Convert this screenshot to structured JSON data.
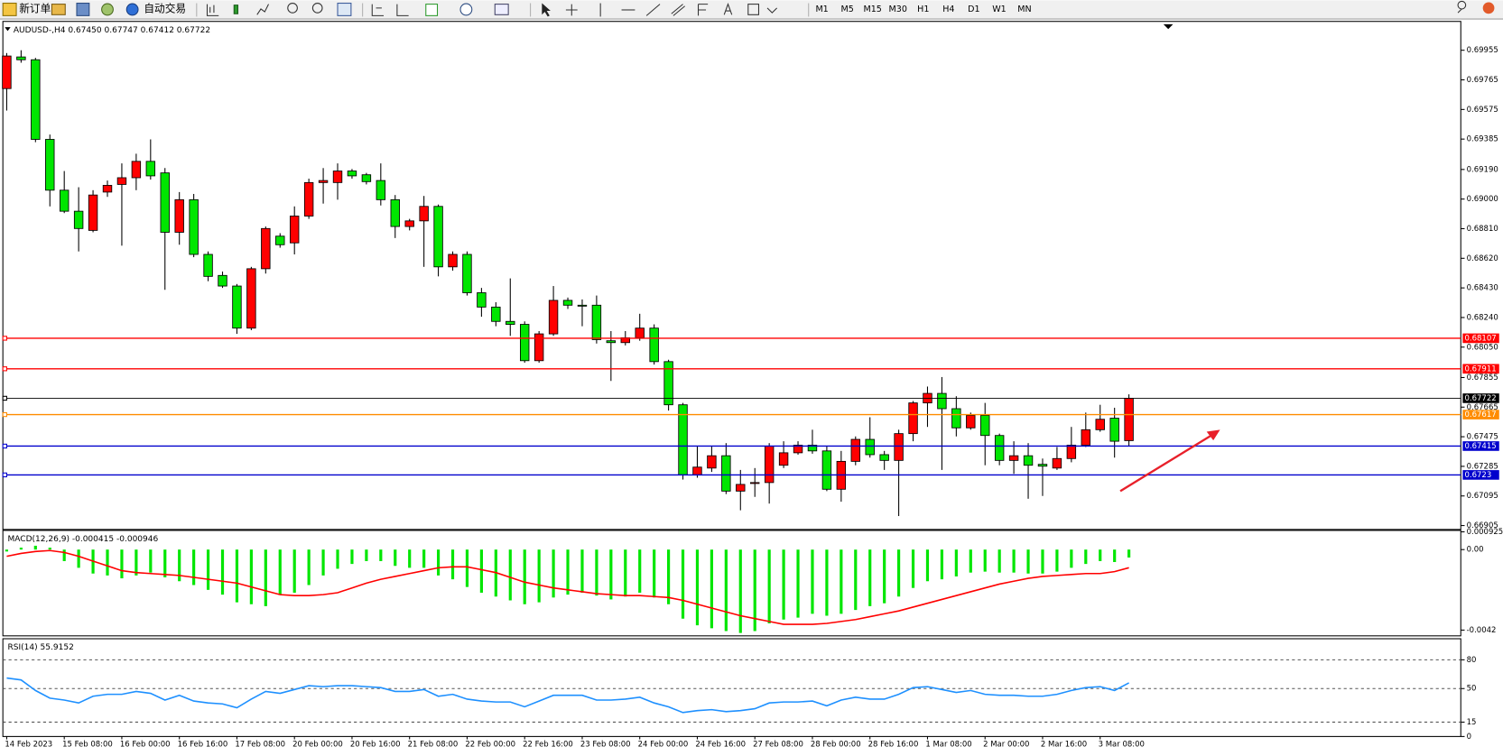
{
  "toolbar": {
    "new_order": "新订单",
    "auto_trading": "自动交易",
    "timeframes": [
      "M1",
      "M5",
      "M15",
      "M30",
      "H1",
      "H4",
      "D1",
      "W1",
      "MN"
    ]
  },
  "chart_data": [
    {
      "type": "candlestick",
      "title": "AUDUSD-,H4 0.67450 0.67747 0.67412 0.67722",
      "categories": [
        "14 Feb 2023",
        null,
        null,
        null,
        "15 Feb 08:00",
        null,
        null,
        null,
        "16 Feb 00:00",
        null,
        null,
        null,
        "16 Feb 16:00",
        null,
        null,
        null,
        "17 Feb 08:00",
        null,
        null,
        null,
        "20 Feb 00:00",
        null,
        null,
        null,
        "20 Feb 16:00",
        null,
        null,
        null,
        "21 Feb 08:00",
        null,
        null,
        null,
        "22 Feb 00:00",
        null,
        null,
        null,
        "22 Feb 16:00",
        null,
        null,
        null,
        "23 Feb 08:00",
        null,
        null,
        null,
        "24 Feb 00:00",
        null,
        null,
        null,
        "24 Feb 16:00",
        null,
        null,
        null,
        "27 Feb 08:00",
        null,
        null,
        null,
        "28 Feb 00:00",
        null,
        null,
        null,
        "28 Feb 16:00",
        null,
        null,
        null,
        "1 Mar 08:00",
        null,
        null,
        null,
        "2 Mar 00:00",
        null,
        null,
        null,
        "2 Mar 16:00",
        null,
        null,
        null,
        "3 Mar 08:00",
        null,
        null
      ],
      "open": [
        0.69709,
        0.69912,
        0.69894,
        0.69383,
        0.69057,
        0.68922,
        0.68799,
        0.69045,
        0.69094,
        0.69137,
        0.69242,
        0.69168,
        0.68787,
        0.68996,
        0.68645,
        0.6851,
        0.68442,
        0.68172,
        0.68553,
        0.68762,
        0.68719,
        0.68891,
        0.69106,
        0.69106,
        0.6918,
        0.69156,
        0.69119,
        0.68996,
        0.68824,
        0.6886,
        0.68953,
        0.68565,
        0.68645,
        0.68399,
        0.68307,
        0.68215,
        0.68196,
        0.67963,
        0.68135,
        0.6835,
        0.68319,
        0.68319,
        0.68091,
        0.68079,
        0.6811,
        0.68172,
        0.67957,
        0.6768,
        0.67231,
        0.67274,
        0.67353,
        0.67126,
        0.67175,
        0.67181,
        0.67292,
        0.67372,
        0.67421,
        0.67384,
        0.67138,
        0.67317,
        0.67458,
        0.6736,
        0.67323,
        0.67495,
        0.67692,
        0.67753,
        0.67655,
        0.67532,
        0.67612,
        0.67483,
        0.67323,
        0.67353,
        0.67298,
        0.67274,
        0.67335,
        0.67421,
        0.6752,
        0.67594,
        0.6745
      ],
      "high": [
        0.69937,
        0.69955,
        0.69906,
        0.69414,
        0.6918,
        0.69076,
        0.69057,
        0.69119,
        0.69229,
        0.69291,
        0.69383,
        0.69199,
        0.69045,
        0.69033,
        0.68664,
        0.68535,
        0.68455,
        0.68565,
        0.68824,
        0.68781,
        0.68953,
        0.69131,
        0.69199,
        0.69229,
        0.69193,
        0.69168,
        0.69229,
        0.69026,
        0.68873,
        0.6902,
        0.68965,
        0.68664,
        0.68664,
        0.6843,
        0.68338,
        0.68491,
        0.68215,
        0.68153,
        0.68442,
        0.68368,
        0.68356,
        0.68381,
        0.68153,
        0.68153,
        0.68264,
        0.68196,
        0.67969,
        0.67692,
        0.67415,
        0.67415,
        0.67434,
        0.67262,
        0.67274,
        0.67434,
        0.67446,
        0.67446,
        0.6752,
        0.67415,
        0.67384,
        0.67477,
        0.676,
        0.67384,
        0.6752,
        0.67704,
        0.67797,
        0.67858,
        0.67735,
        0.6763,
        0.67692,
        0.67495,
        0.67446,
        0.67434,
        0.67335,
        0.67409,
        0.67538,
        0.6763,
        0.6768,
        0.67661,
        0.67747
      ],
      "low": [
        0.69568,
        0.69875,
        0.69365,
        0.68953,
        0.6891,
        0.68664,
        0.68787,
        0.69014,
        0.68701,
        0.69057,
        0.69125,
        0.68418,
        0.68707,
        0.68627,
        0.68473,
        0.6843,
        0.68135,
        0.68159,
        0.68522,
        0.68688,
        0.68645,
        0.68873,
        0.68971,
        0.68996,
        0.69131,
        0.69094,
        0.68959,
        0.6875,
        0.68799,
        0.68565,
        0.68504,
        0.68541,
        0.68381,
        0.68245,
        0.68184,
        0.68122,
        0.6795,
        0.6795,
        0.68122,
        0.68295,
        0.68184,
        0.68073,
        0.67833,
        0.68061,
        0.68091,
        0.67938,
        0.67643,
        0.672,
        0.67212,
        0.67249,
        0.67107,
        0.67003,
        0.67089,
        0.67046,
        0.67274,
        0.6736,
        0.67366,
        0.67126,
        0.67058,
        0.67292,
        0.67341,
        0.67262,
        0.66966,
        0.67446,
        0.67538,
        0.67262,
        0.67477,
        0.6752,
        0.67292,
        0.67292,
        0.67237,
        0.67077,
        0.67095,
        0.67262,
        0.67311,
        0.67409,
        0.67507,
        0.67341,
        0.67412
      ],
      "close": [
        0.69918,
        0.69894,
        0.69383,
        0.69057,
        0.68922,
        0.68811,
        0.69026,
        0.69088,
        0.69137,
        0.69242,
        0.69149,
        0.68787,
        0.68996,
        0.68645,
        0.68504,
        0.68442,
        0.68172,
        0.68553,
        0.68811,
        0.68707,
        0.68891,
        0.69106,
        0.69119,
        0.6918,
        0.69149,
        0.69112,
        0.68996,
        0.68824,
        0.6886,
        0.68953,
        0.68565,
        0.68645,
        0.68399,
        0.68307,
        0.68215,
        0.68196,
        0.67963,
        0.68135,
        0.6835,
        0.68319,
        0.68313,
        0.68098,
        0.68079,
        0.6811,
        0.68172,
        0.67957,
        0.6768,
        0.67231,
        0.6728,
        0.67353,
        0.67126,
        0.67169,
        0.67181,
        0.67415,
        0.67372,
        0.67421,
        0.67384,
        0.67138,
        0.67317,
        0.67458,
        0.6736,
        0.67323,
        0.67495,
        0.67692,
        0.67753,
        0.67655,
        0.67532,
        0.67612,
        0.67483,
        0.67323,
        0.67353,
        0.67292,
        0.67286,
        0.67335,
        0.67421,
        0.6752,
        0.67587,
        0.67446,
        0.67722
      ],
      "up_color": "#ff0000",
      "down_color": "#00e600",
      "ylim": [
        0.6688,
        0.7014
      ],
      "yticks": [
        0.69955,
        0.69765,
        0.69575,
        0.69385,
        {
          "value": 0.6919,
          "label": "0.69190"
        },
        {
          "value": 0.69,
          "label": "0.69000"
        },
        {
          "value": 0.6881,
          "label": "0.68810"
        },
        {
          "value": 0.6862,
          "label": "0.68620"
        },
        {
          "value": 0.6843,
          "label": "0.68430"
        },
        {
          "value": 0.6824,
          "label": "0.68240"
        },
        {
          "value": 0.6805,
          "label": "0.68050"
        },
        0.67855,
        0.67665,
        0.67475,
        0.67285,
        0.67095,
        0.66905
      ],
      "hlines": [
        {
          "value": 0.68107,
          "color": "#ff0000"
        },
        {
          "value": 0.67911,
          "color": "#ff0000"
        },
        {
          "value": 0.67722,
          "color": "#000000"
        },
        {
          "value": 0.67617,
          "color": "#ff8c00"
        },
        {
          "value": 0.67415,
          "color": "#0000cd"
        },
        {
          "value": 0.6723,
          "color": "#0000cd"
        }
      ]
    },
    {
      "type": "macd",
      "title": "MACD(12,26,9) -0.000415 -0.000946",
      "ylim": [
        -0.0045,
        0.001
      ],
      "yticks": [
        0.000925,
        {
          "value": 0,
          "label": "0.00"
        },
        -0.0042
      ],
      "series": [
        {
          "type": "bar",
          "color": "#00e600",
          "values": [
            -0.0001,
            0.0001,
            0.0002,
            0.0001,
            -0.0006,
            -0.00095,
            -0.00125,
            -0.00135,
            -0.0015,
            -0.00135,
            -0.0012,
            -0.00145,
            -0.00165,
            -0.00185,
            -0.0021,
            -0.00235,
            -0.00275,
            -0.00285,
            -0.00295,
            -0.00235,
            -0.00225,
            -0.00185,
            -0.00135,
            -0.001,
            -0.00075,
            -0.0006,
            -0.0006,
            -0.00085,
            -0.00095,
            -0.00095,
            -0.00135,
            -0.00155,
            -0.00195,
            -0.00225,
            -0.00245,
            -0.00265,
            -0.00285,
            -0.00275,
            -0.0025,
            -0.00235,
            -0.00225,
            -0.0024,
            -0.0026,
            -0.00245,
            -0.00225,
            -0.0025,
            -0.00285,
            -0.0036,
            -0.00395,
            -0.0041,
            -0.00425,
            -0.00435,
            -0.00425,
            -0.00385,
            -0.00365,
            -0.00355,
            -0.00335,
            -0.00345,
            -0.00335,
            -0.00315,
            -0.00295,
            -0.0028,
            -0.00245,
            -0.002,
            -0.00165,
            -0.00155,
            -0.0014,
            -0.0012,
            -0.00115,
            -0.0012,
            -0.0012,
            -0.00125,
            -0.00125,
            -0.00115,
            -0.00095,
            -0.00075,
            -0.0006,
            -0.00065,
            -0.000415
          ]
        },
        {
          "type": "line",
          "color": "#ff0000",
          "values": [
            -0.00035,
            -0.0002,
            -0.0001,
            -5e-05,
            -0.00015,
            -0.00035,
            -0.0006,
            -0.00085,
            -0.0011,
            -0.0012,
            -0.00125,
            -0.0013,
            -0.00135,
            -0.00145,
            -0.00155,
            -0.00165,
            -0.00175,
            -0.00195,
            -0.00215,
            -0.00235,
            -0.0024,
            -0.0024,
            -0.00235,
            -0.00225,
            -0.002,
            -0.00175,
            -0.00155,
            -0.0014,
            -0.00125,
            -0.0011,
            -0.00095,
            -0.0009,
            -0.0009,
            -0.00105,
            -0.0012,
            -0.00145,
            -0.0017,
            -0.00185,
            -0.002,
            -0.0021,
            -0.0022,
            -0.0023,
            -0.00235,
            -0.0024,
            -0.0024,
            -0.00245,
            -0.0025,
            -0.00265,
            -0.00285,
            -0.00305,
            -0.00325,
            -0.00345,
            -0.0036,
            -0.00375,
            -0.0039,
            -0.0039,
            -0.0039,
            -0.00385,
            -0.00375,
            -0.00365,
            -0.0035,
            -0.00335,
            -0.0032,
            -0.003,
            -0.0028,
            -0.0026,
            -0.0024,
            -0.0022,
            -0.002,
            -0.0018,
            -0.00165,
            -0.0015,
            -0.0014,
            -0.00135,
            -0.0013,
            -0.00125,
            -0.00125,
            -0.00115,
            -0.000946
          ]
        }
      ]
    },
    {
      "type": "line",
      "title": "RSI(14) 55.9152",
      "color": "#1e90ff",
      "ylim": [
        0,
        102
      ],
      "yticks": [
        0,
        15,
        50,
        80
      ],
      "levels": [
        15,
        50,
        80
      ],
      "values": [
        61,
        59,
        48,
        40,
        38,
        35,
        42,
        44,
        44,
        47,
        45,
        38,
        43,
        37,
        35,
        34,
        30,
        39,
        47,
        45,
        49,
        53,
        52,
        53,
        53,
        52,
        51,
        47,
        47,
        49,
        42,
        44,
        39,
        37,
        36,
        36,
        31,
        37,
        43,
        43,
        43,
        38,
        38,
        39,
        41,
        35,
        31,
        25,
        27,
        28,
        26,
        27,
        29,
        35,
        36,
        36,
        37,
        32,
        38,
        41,
        39,
        39,
        44,
        51,
        52,
        49,
        46,
        48,
        44,
        43,
        43,
        42,
        42,
        44,
        48,
        51,
        52,
        48,
        55.9152
      ]
    }
  ]
}
